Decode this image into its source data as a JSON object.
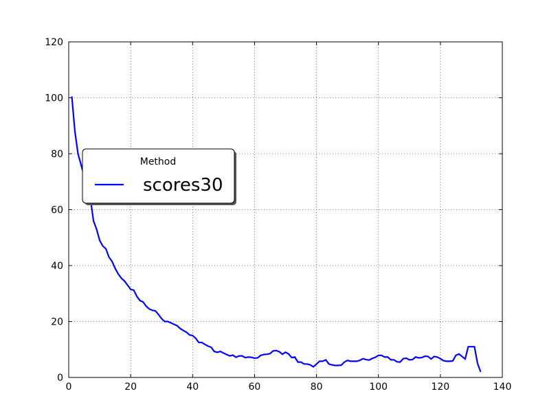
{
  "chart_data": {
    "type": "line",
    "legend_title": "Method",
    "legend_loc": "center left",
    "grid": true,
    "x": [
      1,
      2,
      3,
      4,
      5,
      6,
      7,
      8,
      9,
      10,
      11,
      12,
      13,
      14,
      15,
      16,
      17,
      18,
      19,
      20,
      21,
      22,
      23,
      24,
      25,
      26,
      27,
      28,
      29,
      30,
      31,
      32,
      33,
      34,
      35,
      36,
      37,
      38,
      39,
      40,
      41,
      42,
      43,
      44,
      45,
      46,
      47,
      48,
      49,
      50,
      51,
      52,
      53,
      54,
      55,
      56,
      57,
      58,
      59,
      60,
      61,
      62,
      63,
      64,
      65,
      66,
      67,
      68,
      69,
      70,
      71,
      72,
      73,
      74,
      75,
      76,
      77,
      78,
      79,
      80,
      81,
      82,
      83,
      84,
      85,
      86,
      87,
      88,
      89,
      90,
      91,
      92,
      93,
      94,
      95,
      96,
      97,
      98,
      99,
      100,
      101,
      102,
      103,
      104,
      105,
      106,
      107,
      108,
      109,
      110,
      111,
      112,
      113,
      114,
      115,
      116,
      117,
      118,
      119,
      120,
      121,
      122,
      123,
      124,
      125,
      126,
      127,
      128,
      129,
      130,
      131,
      132,
      133
    ],
    "series": [
      {
        "name": "scores30",
        "color": "#0000ff",
        "values": [
          100.5,
          88,
          80,
          76,
          72,
          68,
          64,
          56,
          53,
          49,
          47,
          46,
          43,
          41.5,
          39,
          37,
          35.5,
          34.5,
          33,
          31.5,
          31.2,
          29,
          27.5,
          27,
          25.5,
          24.5,
          24,
          23.8,
          22.5,
          21,
          20,
          20,
          19.5,
          19,
          18.5,
          17.5,
          16.8,
          16.2,
          15.2,
          15,
          14,
          12.5,
          12.5,
          11.8,
          11.2,
          10.8,
          9.3,
          9,
          9.3,
          8.7,
          8.2,
          7.7,
          8,
          7.2,
          7.7,
          7.7,
          7.1,
          7.3,
          7.2,
          6.9,
          7,
          7.9,
          8.2,
          8.3,
          8.5,
          9.5,
          9.6,
          9.2,
          8.3,
          9,
          8.4,
          7.1,
          7.3,
          5.5,
          5.5,
          4.8,
          4.8,
          4.5,
          3.8,
          4.8,
          5.8,
          5.8,
          6.3,
          4.8,
          4.5,
          4.3,
          4.3,
          4.4,
          5.5,
          6.1,
          5.8,
          5.8,
          5.8,
          6.1,
          6.7,
          6.4,
          6.2,
          6.8,
          7.2,
          7.9,
          7.9,
          7.3,
          7.3,
          6.3,
          6.3,
          5.6,
          5.5,
          6.7,
          6.9,
          6.3,
          6.4,
          7.3,
          7,
          7.1,
          7.6,
          7.5,
          6.6,
          7.5,
          7.3,
          6.7,
          6,
          5.8,
          5.8,
          5.9,
          7.9,
          8.4,
          7.5,
          6.6,
          11,
          11,
          11,
          5,
          2
        ]
      }
    ],
    "xlim": [
      0,
      140
    ],
    "xticks": [
      0,
      20,
      40,
      60,
      80,
      100,
      120,
      140
    ],
    "ylim": [
      0,
      120
    ],
    "yticks": [
      0,
      20,
      40,
      60,
      80,
      100,
      120
    ]
  }
}
